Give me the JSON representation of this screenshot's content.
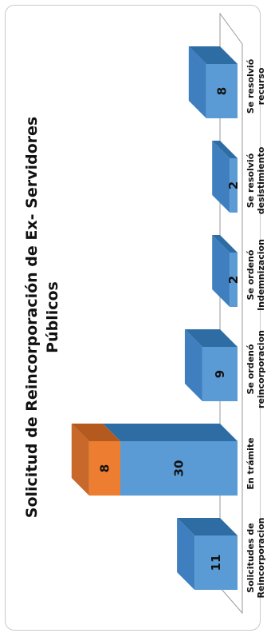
{
  "chart_data": {
    "type": "bar",
    "stacked": true,
    "orientation": "rotated",
    "title_line1": "Solicitud de Reincorporación de Ex- Servidores",
    "title_line2": "Públicos",
    "categories": [
      [
        "Solicitudes de",
        "Reincorporacion"
      ],
      [
        "En trámite"
      ],
      [
        "Se ordenó",
        "reincorporacion"
      ],
      [
        "Se ordenó",
        "Indemnizacion"
      ],
      [
        "Se resolvió",
        "desistimiento"
      ],
      [
        "Se resolvió",
        "recurso"
      ]
    ],
    "series": [
      {
        "values": [
          11,
          30,
          9,
          2,
          2,
          8
        ],
        "color": "#5b9bd5",
        "side_color": "#2e6da4",
        "top_color": "#3f7fbf"
      },
      {
        "values": [
          0,
          8,
          0,
          0,
          0,
          0
        ],
        "color": "#ed7d31",
        "side_color": "#b45a1e",
        "top_color": "#c8682a"
      }
    ],
    "ylim": [
      0,
      40
    ],
    "grid": false,
    "legend": "none"
  }
}
